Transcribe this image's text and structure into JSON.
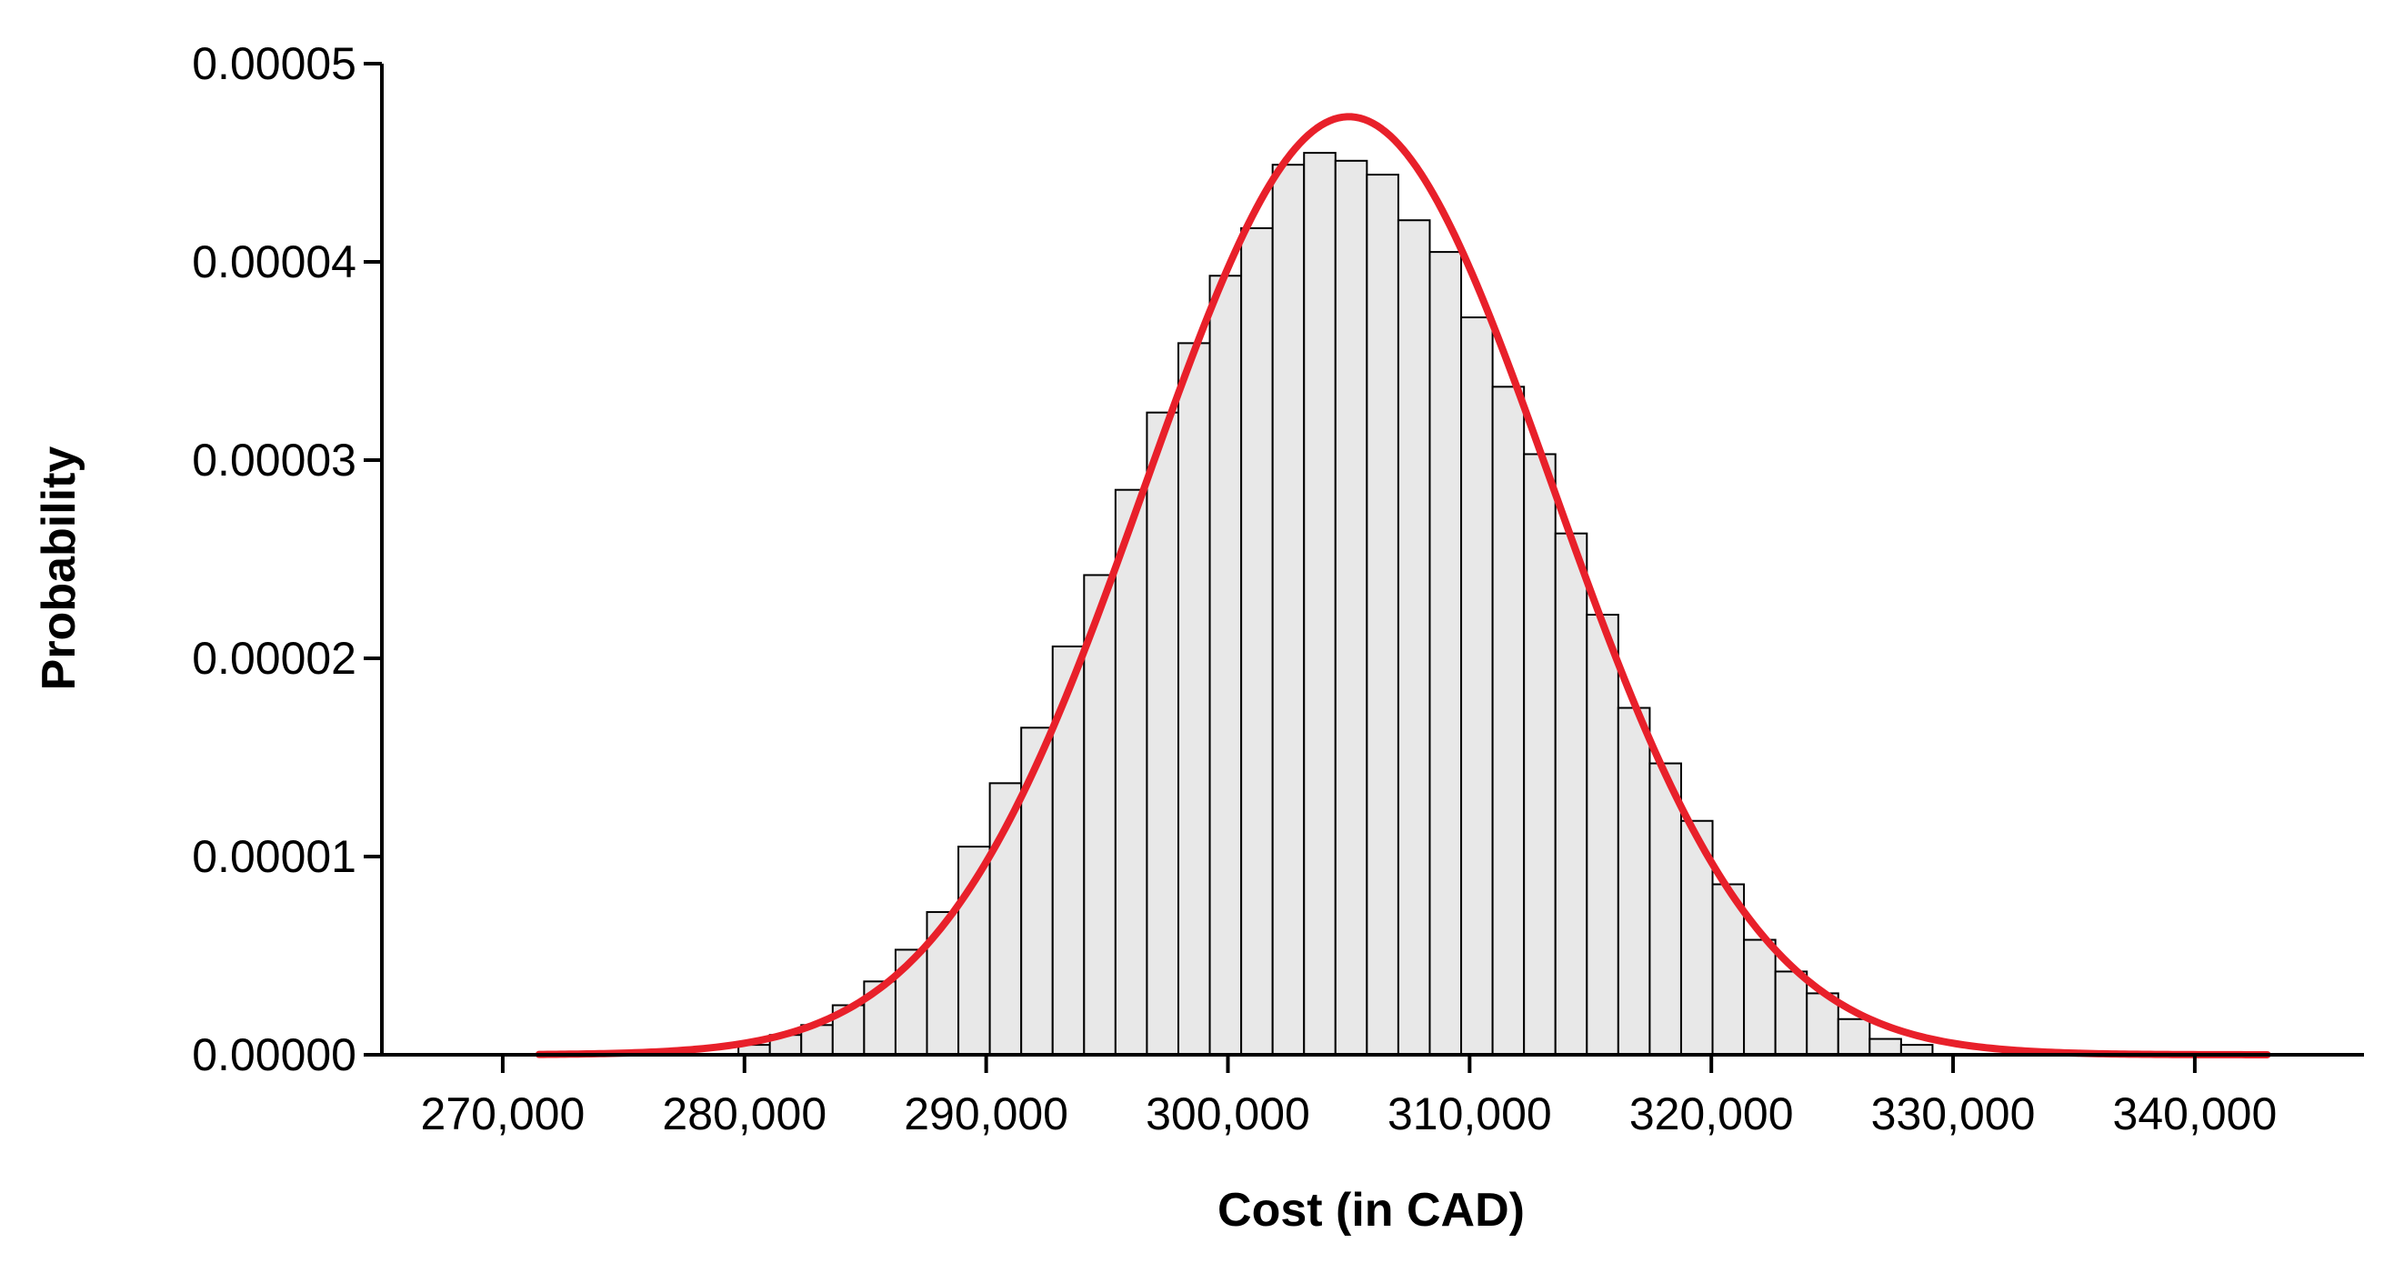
{
  "chart_data": {
    "type": "bar",
    "title": "",
    "xlabel": "Cost (in CAD)",
    "ylabel": "Probability",
    "xlim": [
      265000,
      347000
    ],
    "ylim": [
      0,
      5e-05
    ],
    "grid": false,
    "x_ticks": [
      270000,
      280000,
      290000,
      300000,
      310000,
      320000,
      330000,
      340000
    ],
    "x_tick_labels": [
      "270,000",
      "280,000",
      "290,000",
      "300,000",
      "310,000",
      "320,000",
      "330,000",
      "340,000"
    ],
    "y_ticks": [
      0,
      1e-05,
      2e-05,
      3e-05,
      4e-05,
      5e-05
    ],
    "y_tick_labels": [
      "0.00000",
      "0.00001",
      "0.00002",
      "0.00003",
      "0.00004",
      "0.00005"
    ],
    "bin_width": 1300,
    "bar_color": "#e8e8e8",
    "bar_edge_color": "#000000",
    "curve_color": "#e8202a",
    "bins": [
      {
        "x0": 279750,
        "value": 5e-07
      },
      {
        "x0": 281050,
        "value": 1e-06
      },
      {
        "x0": 282350,
        "value": 1.5e-06
      },
      {
        "x0": 283650,
        "value": 2.5e-06
      },
      {
        "x0": 284950,
        "value": 3.7e-06
      },
      {
        "x0": 286250,
        "value": 5.3e-06
      },
      {
        "x0": 287550,
        "value": 7.2e-06
      },
      {
        "x0": 288850,
        "value": 1.05e-05
      },
      {
        "x0": 290150,
        "value": 1.37e-05
      },
      {
        "x0": 291450,
        "value": 1.65e-05
      },
      {
        "x0": 292750,
        "value": 2.06e-05
      },
      {
        "x0": 294050,
        "value": 2.42e-05
      },
      {
        "x0": 295350,
        "value": 2.85e-05
      },
      {
        "x0": 296650,
        "value": 3.24e-05
      },
      {
        "x0": 297950,
        "value": 3.59e-05
      },
      {
        "x0": 299250,
        "value": 3.93e-05
      },
      {
        "x0": 300550,
        "value": 4.17e-05
      },
      {
        "x0": 301850,
        "value": 4.49e-05
      },
      {
        "x0": 303150,
        "value": 4.55e-05
      },
      {
        "x0": 304450,
        "value": 4.51e-05
      },
      {
        "x0": 305750,
        "value": 4.44e-05
      },
      {
        "x0": 307050,
        "value": 4.21e-05
      },
      {
        "x0": 308350,
        "value": 4.05e-05
      },
      {
        "x0": 309650,
        "value": 3.72e-05
      },
      {
        "x0": 310950,
        "value": 3.37e-05
      },
      {
        "x0": 312250,
        "value": 3.03e-05
      },
      {
        "x0": 313550,
        "value": 2.63e-05
      },
      {
        "x0": 314850,
        "value": 2.22e-05
      },
      {
        "x0": 316150,
        "value": 1.75e-05
      },
      {
        "x0": 317450,
        "value": 1.47e-05
      },
      {
        "x0": 318750,
        "value": 1.18e-05
      },
      {
        "x0": 320050,
        "value": 8.6e-06
      },
      {
        "x0": 321350,
        "value": 5.8e-06
      },
      {
        "x0": 322650,
        "value": 4.2e-06
      },
      {
        "x0": 323950,
        "value": 3.1e-06
      },
      {
        "x0": 325250,
        "value": 1.8e-06
      },
      {
        "x0": 326550,
        "value": 8e-07
      },
      {
        "x0": 327850,
        "value": 5e-07
      }
    ],
    "fit_curve": {
      "type": "normal",
      "mean": 305000,
      "sd": 8430,
      "x_range": [
        271500,
        343000
      ]
    }
  }
}
